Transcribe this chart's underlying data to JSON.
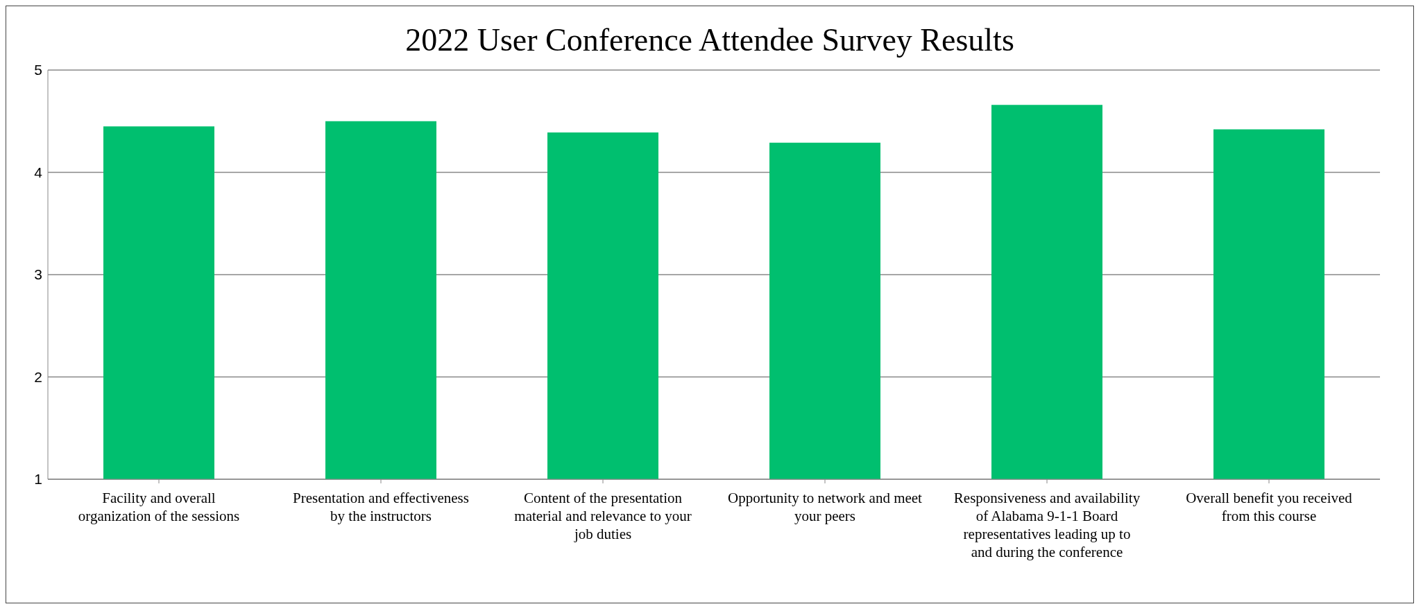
{
  "chart_data": {
    "type": "bar",
    "title": "2022 User Conference Attendee Survey Results",
    "categories": [
      "Facility and overall organization of the sessions",
      "Presentation and effectiveness by the instructors",
      "Content of the presentation material and relevance to your job duties",
      "Opportunity to network and meet your peers",
      "Responsiveness and availability of Alabama 9-1-1 Board representatives leading up to and during the conference",
      "Overall benefit you received from this course"
    ],
    "values": [
      4.45,
      4.5,
      4.39,
      4.29,
      4.66,
      4.42
    ],
    "color": "#00bf6f",
    "ylim": [
      1,
      5
    ],
    "yticks": [
      1,
      2,
      3,
      4,
      5
    ],
    "grid": "y",
    "legend": false
  }
}
